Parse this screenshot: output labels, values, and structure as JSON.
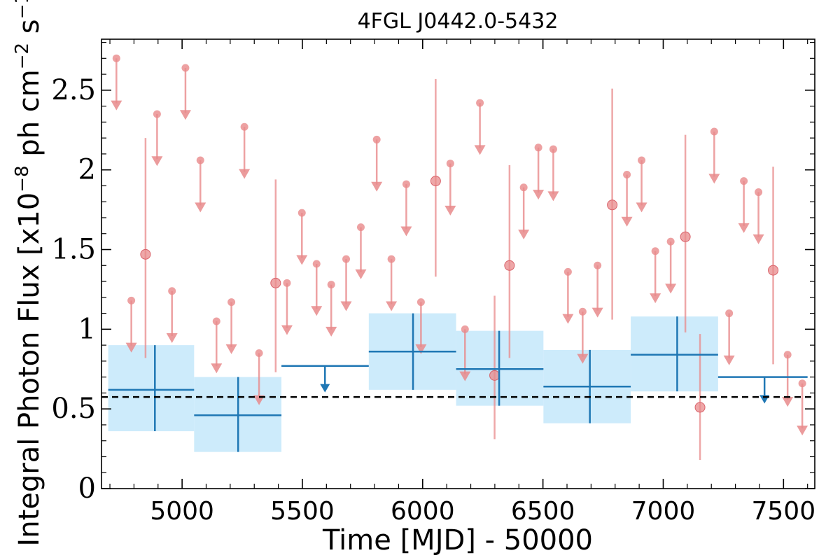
{
  "chart_data": {
    "type": "scatter",
    "title": "4FGL J0442.0-5432",
    "xlabel": "Time [MJD] - 50000",
    "ylabel": "Integral Photon Flux [x10$^{-8}$ ph cm$^{-2}$ s$^{-1}$]",
    "xlim": [
      4665,
      7630
    ],
    "ylim": [
      0,
      2.82
    ],
    "x_ticks": [
      5000,
      5500,
      6000,
      6500,
      7000,
      7500
    ],
    "y_ticks": [
      0,
      0.5,
      1,
      1.5,
      2,
      2.5
    ],
    "x_tick_labels": [
      "5000",
      "5500",
      "6000",
      "6500",
      "7000",
      "7500"
    ],
    "y_tick_labels": [
      "0",
      "0.5",
      "1",
      "1.5",
      "2",
      "2.5"
    ],
    "reference_line": {
      "y": 0.575,
      "style": "dashed",
      "color": "#000000"
    },
    "series": [
      {
        "bin": "monthly",
        "color": "#e8898b",
        "upper_limits": [
          {
            "x": 4727,
            "y": 2.7
          },
          {
            "x": 4789,
            "y": 1.18
          },
          {
            "x": 4896,
            "y": 2.35
          },
          {
            "x": 4958,
            "y": 1.24
          },
          {
            "x": 5014,
            "y": 2.64
          },
          {
            "x": 5076,
            "y": 2.06
          },
          {
            "x": 5143,
            "y": 1.05
          },
          {
            "x": 5205,
            "y": 1.17
          },
          {
            "x": 5259,
            "y": 2.27
          },
          {
            "x": 5320,
            "y": 0.85
          },
          {
            "x": 5436,
            "y": 1.29
          },
          {
            "x": 5498,
            "y": 1.73
          },
          {
            "x": 5559,
            "y": 1.41
          },
          {
            "x": 5620,
            "y": 1.28
          },
          {
            "x": 5682,
            "y": 1.44
          },
          {
            "x": 5743,
            "y": 1.64
          },
          {
            "x": 5809,
            "y": 2.19
          },
          {
            "x": 5870,
            "y": 1.44
          },
          {
            "x": 5932,
            "y": 1.91
          },
          {
            "x": 5993,
            "y": 1.17
          },
          {
            "x": 6115,
            "y": 2.04
          },
          {
            "x": 6176,
            "y": 1.0
          },
          {
            "x": 6238,
            "y": 2.42
          },
          {
            "x": 6420,
            "y": 1.89
          },
          {
            "x": 6481,
            "y": 2.14
          },
          {
            "x": 6543,
            "y": 2.13
          },
          {
            "x": 6604,
            "y": 1.36
          },
          {
            "x": 6665,
            "y": 1.11
          },
          {
            "x": 6727,
            "y": 1.4
          },
          {
            "x": 6849,
            "y": 1.97
          },
          {
            "x": 6910,
            "y": 2.06
          },
          {
            "x": 6967,
            "y": 1.49
          },
          {
            "x": 7031,
            "y": 1.55
          },
          {
            "x": 7212,
            "y": 2.24
          },
          {
            "x": 7274,
            "y": 1.1
          },
          {
            "x": 7335,
            "y": 1.93
          },
          {
            "x": 7396,
            "y": 1.86
          },
          {
            "x": 7517,
            "y": 0.84
          },
          {
            "x": 7578,
            "y": 0.66
          }
        ],
        "detections": [
          {
            "x": 4848,
            "y": 1.47,
            "yerr_low": 0.82,
            "yerr_high": 2.2
          },
          {
            "x": 5389,
            "y": 1.29,
            "yerr_low": 0.73,
            "yerr_high": 1.94
          },
          {
            "x": 6054,
            "y": 1.93,
            "yerr_low": 1.33,
            "yerr_high": 2.57
          },
          {
            "x": 6299,
            "y": 0.71,
            "yerr_low": 0.31,
            "yerr_high": 1.21
          },
          {
            "x": 6361,
            "y": 1.4,
            "yerr_low": 0.82,
            "yerr_high": 2.03
          },
          {
            "x": 6788,
            "y": 1.78,
            "yerr_low": 1.06,
            "yerr_high": 2.51
          },
          {
            "x": 7092,
            "y": 1.58,
            "yerr_low": 0.98,
            "yerr_high": 2.22
          },
          {
            "x": 7153,
            "y": 0.51,
            "yerr_low": 0.18,
            "yerr_high": 0.97
          },
          {
            "x": 7457,
            "y": 1.37,
            "yerr_low": 0.78,
            "yerr_high": 2.02
          }
        ]
      },
      {
        "bin": "yearly",
        "color": "#1f77b4",
        "band_color": "#cdebfb",
        "detections": [
          {
            "x_low": 4693,
            "x_high": 5050,
            "x": 4887,
            "y": 0.62,
            "y_low": 0.36,
            "y_high": 0.9
          },
          {
            "x_low": 5050,
            "x_high": 5413,
            "x": 5233,
            "y": 0.46,
            "y_low": 0.23,
            "y_high": 0.7
          },
          {
            "x_low": 5776,
            "x_high": 6139,
            "x": 5960,
            "y": 0.86,
            "y_low": 0.62,
            "y_high": 1.1
          },
          {
            "x_low": 6139,
            "x_high": 6502,
            "x": 6318,
            "y": 0.75,
            "y_low": 0.52,
            "y_high": 0.99
          },
          {
            "x_low": 6502,
            "x_high": 6865,
            "x": 6695,
            "y": 0.64,
            "y_low": 0.41,
            "y_high": 0.87
          },
          {
            "x_low": 6865,
            "x_high": 7228,
            "x": 7058,
            "y": 0.84,
            "y_low": 0.61,
            "y_high": 1.08
          }
        ],
        "upper_limits": [
          {
            "x_low": 5413,
            "x_high": 5776,
            "x": 5594,
            "y": 0.77
          },
          {
            "x_low": 7228,
            "x_high": 7600,
            "x": 7421,
            "y": 0.7
          }
        ]
      }
    ]
  }
}
